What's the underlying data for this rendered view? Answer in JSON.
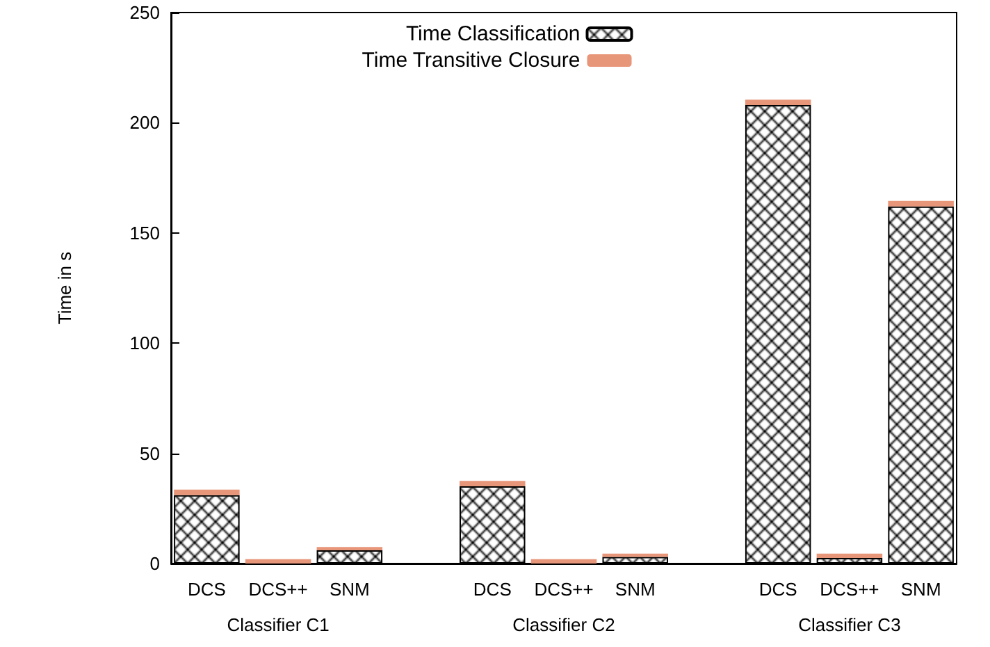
{
  "chart_data": {
    "type": "bar",
    "stacked": true,
    "ylabel": "Time in s",
    "categories": [
      "DCS",
      "DCS++",
      "SNM",
      null,
      "DCS",
      "DCS++",
      "SNM",
      null,
      "DCS",
      "DCS++",
      "SNM"
    ],
    "series": [
      {
        "name": "Time Classification",
        "color": "#000000",
        "values": [
          31,
          null,
          6,
          null,
          35,
          null,
          3,
          null,
          208,
          2.5,
          162
        ]
      },
      {
        "name": "Time Transitive Closure",
        "color": "#e8967a",
        "values": [
          2.5,
          2,
          1.5,
          null,
          2.5,
          2,
          1.5,
          null,
          2.5,
          2,
          2.5
        ]
      }
    ],
    "annotations": [
      "Classifier C1",
      "Classifier C2",
      "Classifier C3"
    ],
    "ylim": [
      0,
      250
    ],
    "yticks": [
      0,
      50,
      100,
      150,
      200,
      250
    ],
    "grid": false,
    "legend": "top"
  }
}
